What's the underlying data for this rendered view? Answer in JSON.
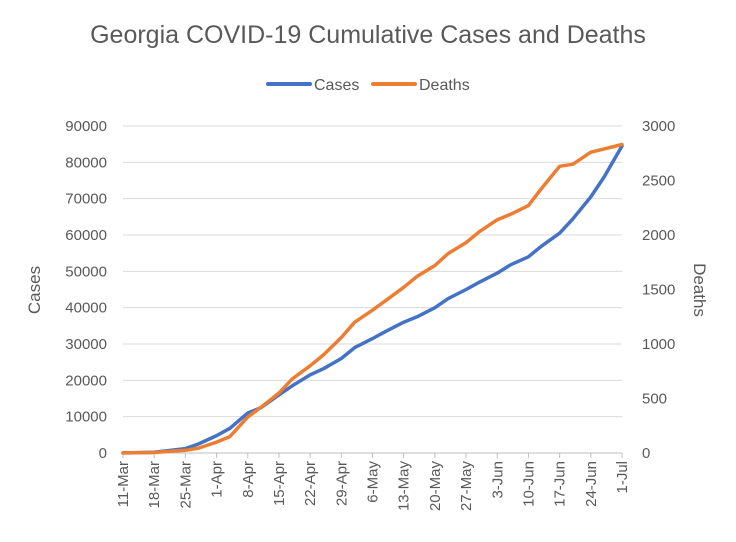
{
  "chart_data": {
    "type": "line",
    "title": "Georgia COVID-19 Cumulative Cases and Deaths",
    "xlabel": "",
    "ylabel": "Cases",
    "y2label": "Deaths",
    "ylim": [
      0,
      90000
    ],
    "y2lim": [
      0,
      3000
    ],
    "yticks": [
      0,
      10000,
      20000,
      30000,
      40000,
      50000,
      60000,
      70000,
      80000,
      90000
    ],
    "y2ticks": [
      0,
      500,
      1000,
      1500,
      2000,
      2500,
      3000
    ],
    "grid": "horizontal",
    "legend_position": "top",
    "x_start": "11-Mar",
    "x_end": "1-Jul",
    "x_days": 112,
    "x_ticks": [
      {
        "label": "11-Mar",
        "day": 0
      },
      {
        "label": "18-Mar",
        "day": 7
      },
      {
        "label": "25-Mar",
        "day": 14
      },
      {
        "label": "1-Apr",
        "day": 21
      },
      {
        "label": "8-Apr",
        "day": 28
      },
      {
        "label": "15-Apr",
        "day": 35
      },
      {
        "label": "22-Apr",
        "day": 42
      },
      {
        "label": "29-Apr",
        "day": 49
      },
      {
        "label": "6-May",
        "day": 56
      },
      {
        "label": "13-May",
        "day": 63
      },
      {
        "label": "20-May",
        "day": 70
      },
      {
        "label": "27-May",
        "day": 77
      },
      {
        "label": "3-Jun",
        "day": 84
      },
      {
        "label": "10-Jun",
        "day": 91
      },
      {
        "label": "17-Jun",
        "day": 98
      },
      {
        "label": "24-Jun",
        "day": 105
      },
      {
        "label": "1-Jul",
        "day": 112
      }
    ],
    "series": [
      {
        "name": "Cases",
        "axis": "left",
        "color": "#4472C4",
        "points": [
          [
            0,
            20
          ],
          [
            7,
            200
          ],
          [
            14,
            1200
          ],
          [
            17,
            2500
          ],
          [
            21,
            4800
          ],
          [
            24,
            6800
          ],
          [
            28,
            11000
          ],
          [
            31,
            12500
          ],
          [
            35,
            16000
          ],
          [
            38,
            18500
          ],
          [
            42,
            21500
          ],
          [
            45,
            23200
          ],
          [
            49,
            26000
          ],
          [
            52,
            29000
          ],
          [
            56,
            31500
          ],
          [
            59,
            33500
          ],
          [
            63,
            36000
          ],
          [
            66,
            37500
          ],
          [
            70,
            40000
          ],
          [
            73,
            42500
          ],
          [
            77,
            45000
          ],
          [
            80,
            47000
          ],
          [
            84,
            49500
          ],
          [
            87,
            51800
          ],
          [
            91,
            54000
          ],
          [
            94,
            57000
          ],
          [
            98,
            60500
          ],
          [
            101,
            64500
          ],
          [
            105,
            70500
          ],
          [
            108,
            76000
          ],
          [
            112,
            84500
          ]
        ]
      },
      {
        "name": "Deaths",
        "axis": "right",
        "color": "#ED7D31",
        "points": [
          [
            0,
            1
          ],
          [
            7,
            5
          ],
          [
            14,
            25
          ],
          [
            17,
            45
          ],
          [
            21,
            100
          ],
          [
            24,
            150
          ],
          [
            28,
            330
          ],
          [
            31,
            420
          ],
          [
            35,
            550
          ],
          [
            38,
            680
          ],
          [
            42,
            800
          ],
          [
            45,
            900
          ],
          [
            49,
            1060
          ],
          [
            52,
            1200
          ],
          [
            56,
            1310
          ],
          [
            59,
            1400
          ],
          [
            63,
            1520
          ],
          [
            66,
            1620
          ],
          [
            70,
            1720
          ],
          [
            73,
            1830
          ],
          [
            77,
            1930
          ],
          [
            80,
            2030
          ],
          [
            84,
            2140
          ],
          [
            87,
            2190
          ],
          [
            91,
            2270
          ],
          [
            94,
            2430
          ],
          [
            98,
            2630
          ],
          [
            101,
            2650
          ],
          [
            105,
            2760
          ],
          [
            108,
            2790
          ],
          [
            112,
            2830
          ]
        ]
      }
    ]
  }
}
